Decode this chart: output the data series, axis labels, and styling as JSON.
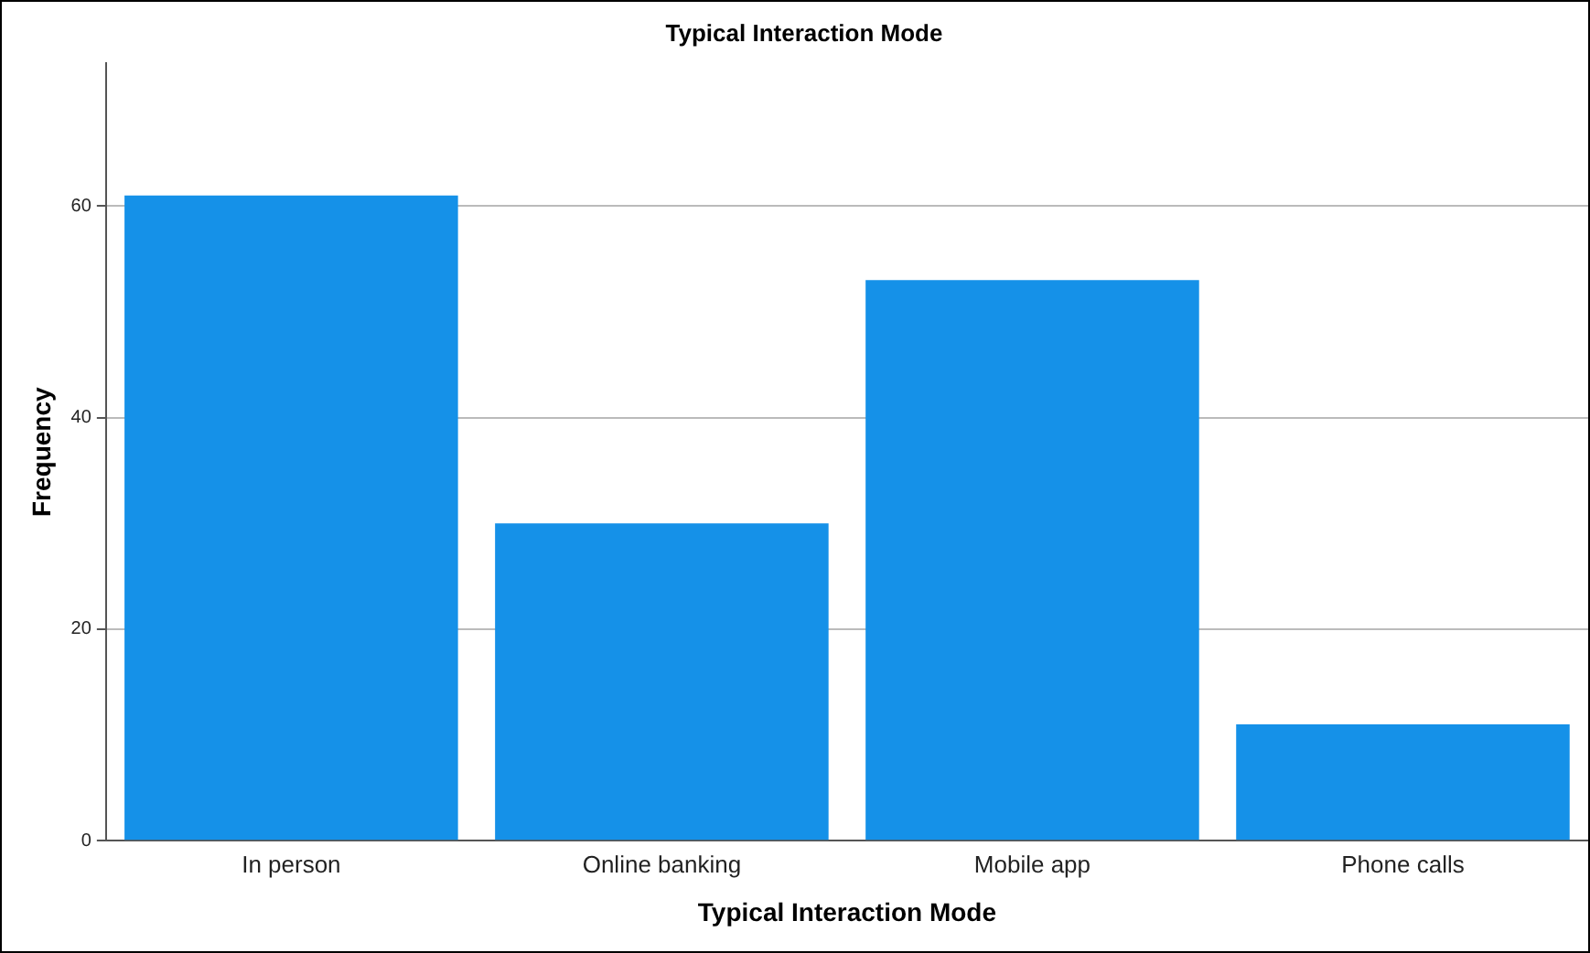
{
  "chart_data": {
    "type": "bar",
    "title": "Typical Interaction Mode",
    "xlabel": "Typical Interaction Mode",
    "ylabel": "Frequency",
    "categories": [
      "In person",
      "Online banking",
      "Mobile app",
      "Phone calls"
    ],
    "values": [
      61,
      30,
      53,
      11
    ],
    "color": "#1591e8",
    "ylim": [
      0,
      73.5
    ],
    "yticks": [
      0,
      20,
      40,
      60
    ],
    "grid": "y"
  }
}
